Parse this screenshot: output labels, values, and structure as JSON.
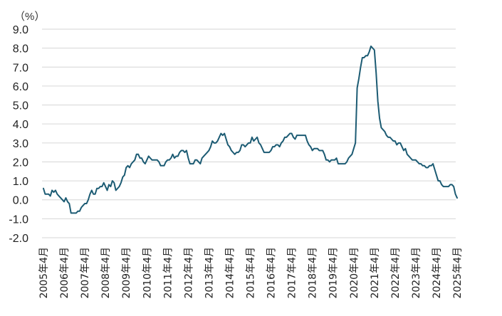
{
  "colors": {
    "line": "#1c5b73",
    "negative_tick": "#c00000",
    "tick": "#222222",
    "grid": "#d6d6d6"
  },
  "chart_data": {
    "type": "line",
    "unit_label": "（%）",
    "ylim": [
      -2.0,
      9.0
    ],
    "yticks": [
      "9.0",
      "8.0",
      "7.0",
      "6.0",
      "5.0",
      "4.0",
      "3.0",
      "2.0",
      "1.0",
      "0.0",
      "-1.0",
      "-2.0"
    ],
    "ytick_values": [
      9,
      8,
      7,
      6,
      5,
      4,
      3,
      2,
      1,
      0,
      -1,
      -2
    ],
    "xticks": [
      "2005年4月",
      "2006年4月",
      "2007年4月",
      "2008年4月",
      "2009年4月",
      "2010年4月",
      "2011年4月",
      "2012年4月",
      "2013年4月",
      "2014年4月",
      "2015年4月",
      "2016年4月",
      "2017年4月",
      "2018年4月",
      "2019年4月",
      "2020年4月",
      "2021年4月",
      "2022年4月",
      "2023年4月",
      "2024年4月",
      "2025年4月"
    ],
    "grid": "horizontal",
    "legend": "none",
    "series": [
      {
        "x_start": "2005年4月",
        "frequency": "monthly",
        "values": [
          0.6,
          0.3,
          0.3,
          0.3,
          0.2,
          0.5,
          0.4,
          0.5,
          0.3,
          0.2,
          0.1,
          0.0,
          -0.1,
          0.1,
          -0.1,
          -0.2,
          -0.7,
          -0.7,
          -0.7,
          -0.7,
          -0.6,
          -0.6,
          -0.4,
          -0.3,
          -0.2,
          -0.2,
          0.0,
          0.3,
          0.5,
          0.3,
          0.3,
          0.6,
          0.6,
          0.7,
          0.7,
          0.9,
          0.7,
          0.5,
          0.8,
          0.7,
          1.0,
          0.9,
          0.5,
          0.6,
          0.7,
          0.9,
          1.2,
          1.3,
          1.7,
          1.8,
          1.7,
          1.9,
          2.0,
          2.1,
          2.4,
          2.4,
          2.2,
          2.2,
          2.0,
          1.9,
          2.1,
          2.3,
          2.2,
          2.1,
          2.1,
          2.1,
          2.1,
          2.0,
          1.8,
          1.8,
          1.8,
          2.0,
          2.1,
          2.1,
          2.2,
          2.4,
          2.2,
          2.3,
          2.3,
          2.5,
          2.6,
          2.6,
          2.5,
          2.6,
          2.2,
          1.9,
          1.9,
          1.9,
          2.1,
          2.1,
          2.0,
          1.9,
          2.2,
          2.3,
          2.4,
          2.5,
          2.6,
          2.8,
          3.1,
          3.0,
          3.0,
          3.1,
          3.3,
          3.5,
          3.4,
          3.5,
          3.2,
          2.9,
          2.8,
          2.6,
          2.5,
          2.4,
          2.5,
          2.5,
          2.6,
          2.9,
          2.9,
          2.8,
          2.9,
          3.0,
          3.0,
          3.3,
          3.1,
          3.2,
          3.3,
          3.0,
          2.9,
          2.7,
          2.5,
          2.5,
          2.5,
          2.5,
          2.6,
          2.8,
          2.8,
          2.9,
          2.9,
          2.8,
          3.0,
          3.1,
          3.3,
          3.3,
          3.4,
          3.5,
          3.5,
          3.3,
          3.2,
          3.4,
          3.4,
          3.4,
          3.4,
          3.4,
          3.4,
          3.1,
          2.9,
          2.8,
          2.6,
          2.7,
          2.7,
          2.7,
          2.6,
          2.6,
          2.6,
          2.4,
          2.1,
          2.1,
          2.0,
          2.1,
          2.1,
          2.1,
          2.2,
          1.9,
          1.9,
          1.9,
          1.9,
          1.9,
          2.0,
          2.2,
          2.3,
          2.4,
          2.7,
          3.0,
          5.9,
          6.4,
          7.0,
          7.5,
          7.5,
          7.6,
          7.6,
          7.8,
          8.1,
          8.0,
          7.9,
          6.7,
          5.2,
          4.3,
          3.8,
          3.7,
          3.6,
          3.4,
          3.3,
          3.3,
          3.2,
          3.1,
          3.1,
          2.9,
          3.0,
          3.0,
          2.8,
          2.6,
          2.7,
          2.4,
          2.3,
          2.2,
          2.1,
          2.1,
          2.1,
          2.0,
          1.9,
          1.9,
          1.8,
          1.8,
          1.7,
          1.7,
          1.8,
          1.8,
          1.9,
          1.6,
          1.3,
          1.0,
          1.0,
          0.8,
          0.7,
          0.7,
          0.7,
          0.7,
          0.8,
          0.8,
          0.7,
          0.3,
          0.1
        ]
      }
    ]
  }
}
